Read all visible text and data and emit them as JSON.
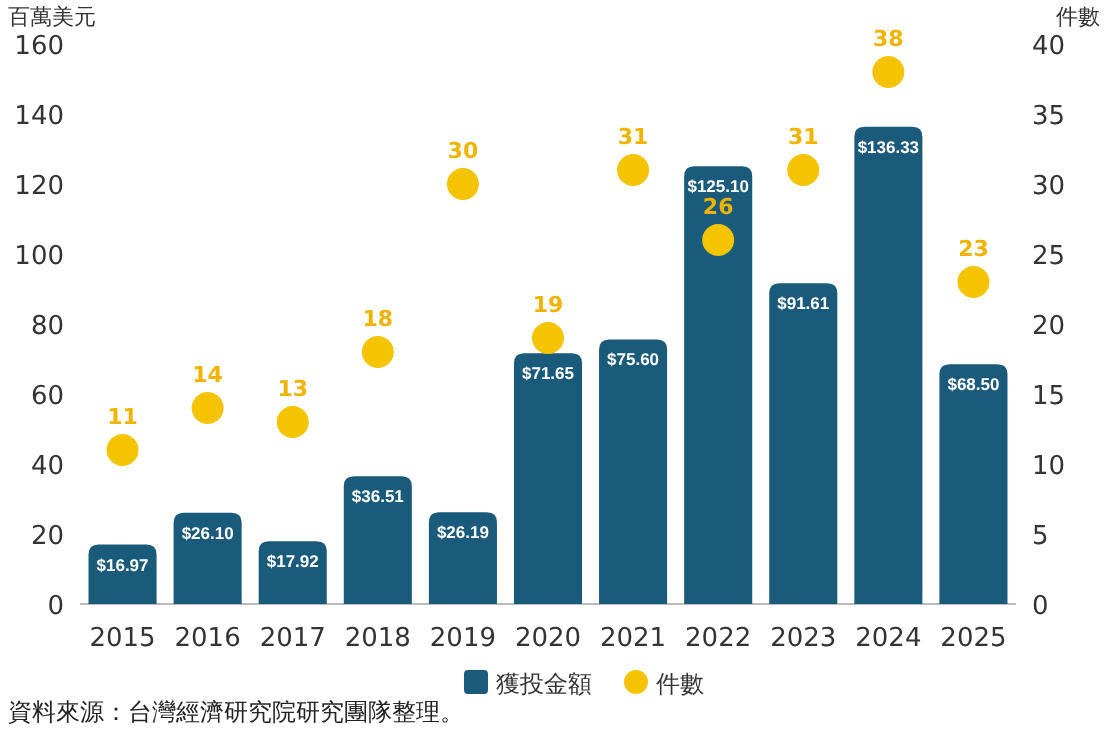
{
  "chart_data": {
    "type": "bar",
    "categories": [
      "2015",
      "2016",
      "2017",
      "2018",
      "2019",
      "2020",
      "2021",
      "2022",
      "2023",
      "2024",
      "2025"
    ],
    "series": [
      {
        "name": "獲投金額",
        "color": "#1a5a7a",
        "values": [
          16.97,
          26.1,
          17.92,
          36.51,
          26.19,
          71.65,
          75.6,
          125.1,
          91.61,
          136.33,
          68.5
        ],
        "value_labels": [
          "$16.97",
          "$26.10",
          "$17.92",
          "$36.51",
          "$26.19",
          "$71.65",
          "$75.60",
          "$125.10",
          "$91.61",
          "$136.33",
          "$68.50"
        ]
      },
      {
        "name": "件數",
        "type": "scatter",
        "axis": "y2",
        "color": "#f5c400",
        "marker": "circle",
        "values": [
          11,
          14,
          13,
          18,
          30,
          19,
          31,
          26,
          31,
          38,
          23
        ],
        "value_labels": [
          "11",
          "14",
          "13",
          "18",
          "30",
          "19",
          "31",
          "26",
          "31",
          "38",
          "23"
        ]
      }
    ],
    "ylabel": "百萬美元",
    "y2label": "件數",
    "ylim": [
      0,
      160
    ],
    "yticks": [
      0,
      20,
      40,
      60,
      80,
      100,
      120,
      140,
      160
    ],
    "y2lim": [
      0,
      40
    ],
    "y2ticks": [
      0,
      5,
      10,
      15,
      20,
      25,
      30,
      35,
      40
    ],
    "grid": false,
    "legend": "bottom",
    "annotations": [
      "資料來源：台灣經濟研究院研究團隊整理。"
    ]
  }
}
